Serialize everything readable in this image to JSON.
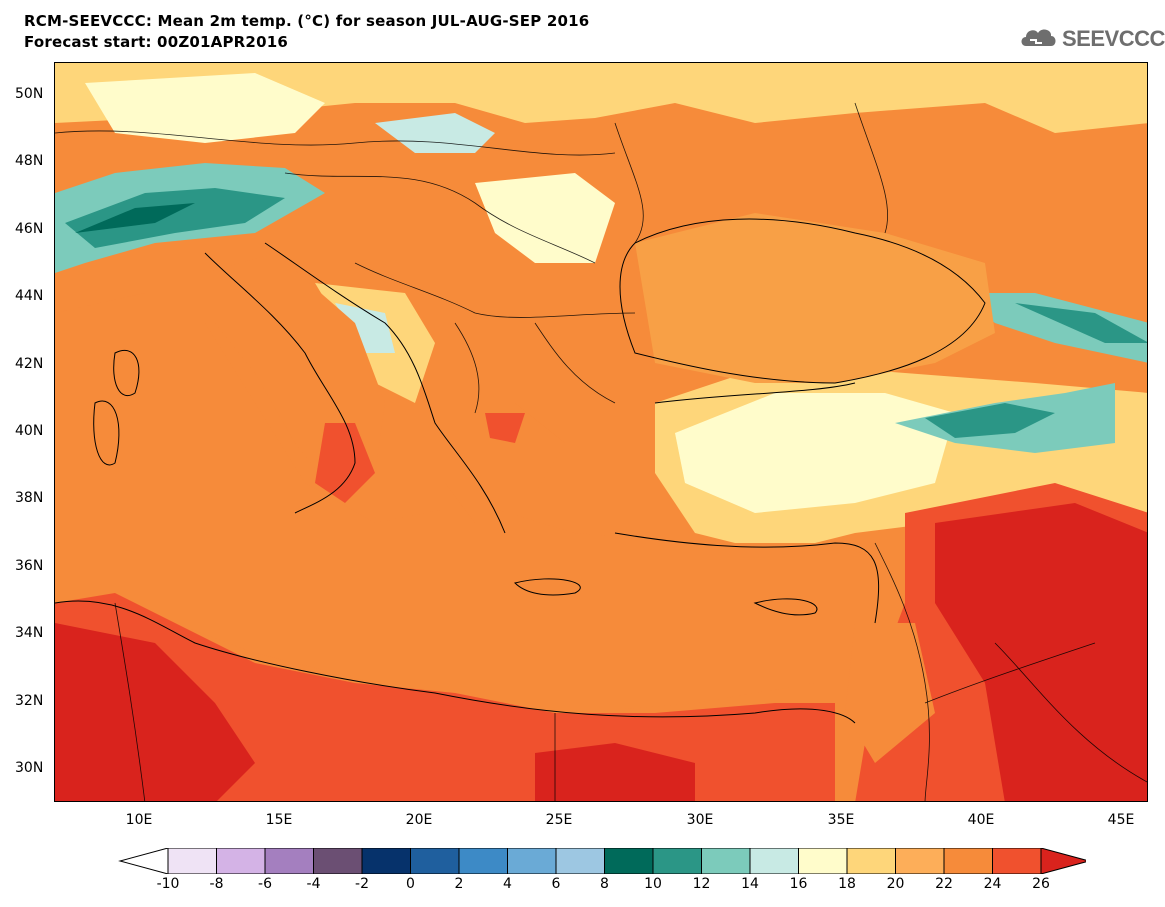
{
  "header": {
    "title_line1": "RCM-SEEVCCC: Mean 2m temp. (°C) for season JUL-AUG-SEP 2016",
    "title_line2": "Forecast start: 00Z01APR2016",
    "logo_text": "SEEVCCC"
  },
  "map": {
    "lat_labels": [
      "50N",
      "48N",
      "46N",
      "44N",
      "42N",
      "40N",
      "38N",
      "36N",
      "34N",
      "32N",
      "30N"
    ],
    "lon_labels": [
      "10E",
      "15E",
      "20E",
      "25E",
      "30E",
      "35E",
      "40E",
      "45E"
    ]
  },
  "colorbar": {
    "labels": [
      "-10",
      "-8",
      "-6",
      "-4",
      "-2",
      "0",
      "2",
      "4",
      "6",
      "8",
      "10",
      "12",
      "14",
      "16",
      "18",
      "20",
      "22",
      "24",
      "26"
    ],
    "colors": [
      "#ffffff",
      "#efe3f5",
      "#d4b3e6",
      "#a47fbf",
      "#6b4f73",
      "#06326b",
      "#1f5f9e",
      "#3d8ac6",
      "#6aaad6",
      "#9dc7e2",
      "#006a5a",
      "#2b9686",
      "#7ccbbb",
      "#c8eae4",
      "#fffccb",
      "#fed67a",
      "#fdae59",
      "#f68b3a",
      "#f0512e",
      "#d9231d"
    ]
  },
  "legend_colors": {
    "ocean": "#f3a04a",
    "land_warm": "#f46c3a",
    "land_hot": "#e0281f",
    "cool": "#fffcd0",
    "teal": "#2e8b7a"
  }
}
